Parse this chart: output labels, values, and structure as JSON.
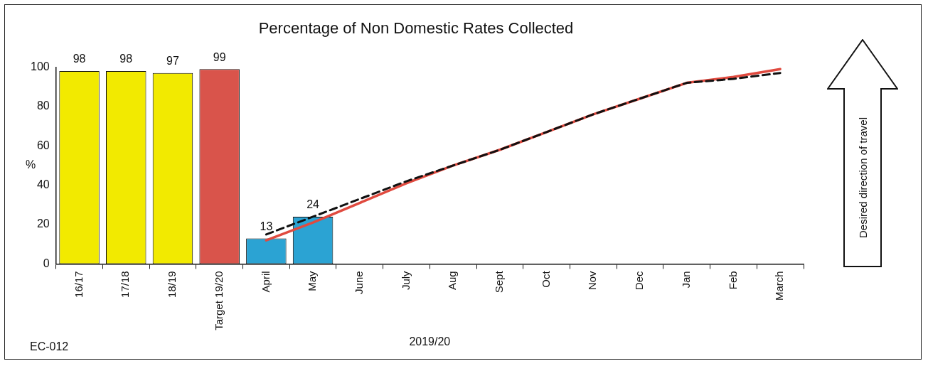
{
  "chart_data": {
    "type": "bar",
    "title": "Percentage of Non Domestic Rates Collected",
    "xlabel": "2019/20",
    "ylabel": "%",
    "categories": [
      "16/17",
      "17/18",
      "18/19",
      "Target 19/20",
      "April",
      "May",
      "June",
      "July",
      "Aug",
      "Sept",
      "Oct",
      "Nov",
      "Dec",
      "Jan",
      "Feb",
      "March"
    ],
    "series": [
      {
        "colors": [
          "#f2ea00",
          "#f2ea00",
          "#f2ea00",
          "#d9544b",
          "#2ba3d3",
          "#2ba3d3",
          null,
          null,
          null,
          null,
          null,
          null,
          null,
          null,
          null,
          null
        ],
        "values": [
          98,
          98,
          97,
          99,
          13,
          24,
          null,
          null,
          null,
          null,
          null,
          null,
          null,
          null,
          null,
          null
        ],
        "value_labels": [
          "98",
          "98",
          "97",
          "99",
          "13",
          "24",
          null,
          null,
          null,
          null,
          null,
          null,
          null,
          null,
          null,
          null
        ]
      },
      {
        "type": "line",
        "color": "#111111",
        "line_style": "dashed",
        "values": [
          null,
          null,
          null,
          null,
          15,
          24,
          33,
          42,
          50,
          58,
          67,
          76,
          84,
          92,
          94,
          97
        ]
      },
      {
        "type": "line",
        "color": "#e04a3f",
        "line_style": "solid",
        "values": [
          null,
          null,
          null,
          null,
          12,
          21,
          31,
          41,
          50,
          58,
          67,
          76,
          84,
          92,
          95,
          99
        ]
      }
    ],
    "ylim": [
      0,
      100
    ],
    "yticks": [
      0,
      20,
      40,
      60,
      80,
      100
    ],
    "marker": "none",
    "annotations": [
      "EC-012",
      "Desired direction of travel"
    ]
  }
}
